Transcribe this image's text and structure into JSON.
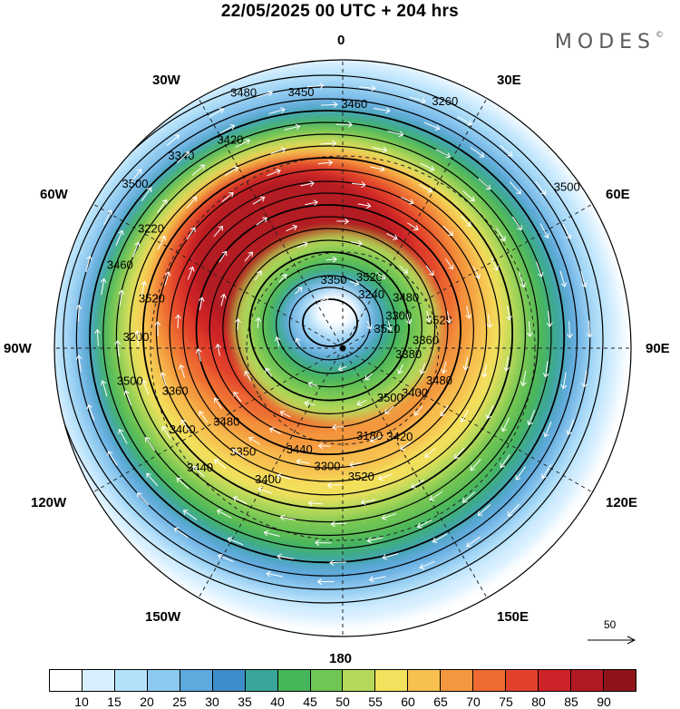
{
  "title": "22/05/2025  00 UTC  + 204 hrs",
  "brand": "MODES",
  "brand_mark": "©",
  "longitude_labels": {
    "lon_0": "0",
    "lon_30e": "30E",
    "lon_60e": "60E",
    "lon_90e": "90E",
    "lon_120e": "120E",
    "lon_150e": "150E",
    "lon_180": "180",
    "lon_150w": "150W",
    "lon_120w": "120W",
    "lon_90w": "90W",
    "lon_60w": "60W",
    "lon_30w": "30W"
  },
  "contour_labels": [
    "3520",
    "3480",
    "3460",
    "3500",
    "3520",
    "3500",
    "3440",
    "3420",
    "3380",
    "3360",
    "3260",
    "3180",
    "3220",
    "3300",
    "3350",
    "3450",
    "3400",
    "3200",
    "3240",
    "3300",
    "3340",
    "3360",
    "3400",
    "3380",
    "3420",
    "3460",
    "3480",
    "3400",
    "3480",
    "3480",
    "3500",
    "3520",
    "3520",
    "3500",
    "3520",
    "3440",
    "3350"
  ],
  "vector_legend": {
    "label": "50"
  },
  "colorbar": {
    "colors": [
      "#ffffff",
      "#d7efff",
      "#b4e1fa",
      "#8cc8ef",
      "#5ea9de",
      "#3f8ccb",
      "#3aa69b",
      "#47b55a",
      "#71c653",
      "#b4d95a",
      "#f3e05c",
      "#f7c04f",
      "#f4973e",
      "#ee6a32",
      "#e2412b",
      "#cd2228",
      "#b21a23",
      "#8e1419"
    ],
    "ticks": [
      "10",
      "15",
      "20",
      "25",
      "30",
      "35",
      "40",
      "45",
      "50",
      "55",
      "60",
      "65",
      "70",
      "75",
      "80",
      "85",
      "90"
    ]
  }
}
